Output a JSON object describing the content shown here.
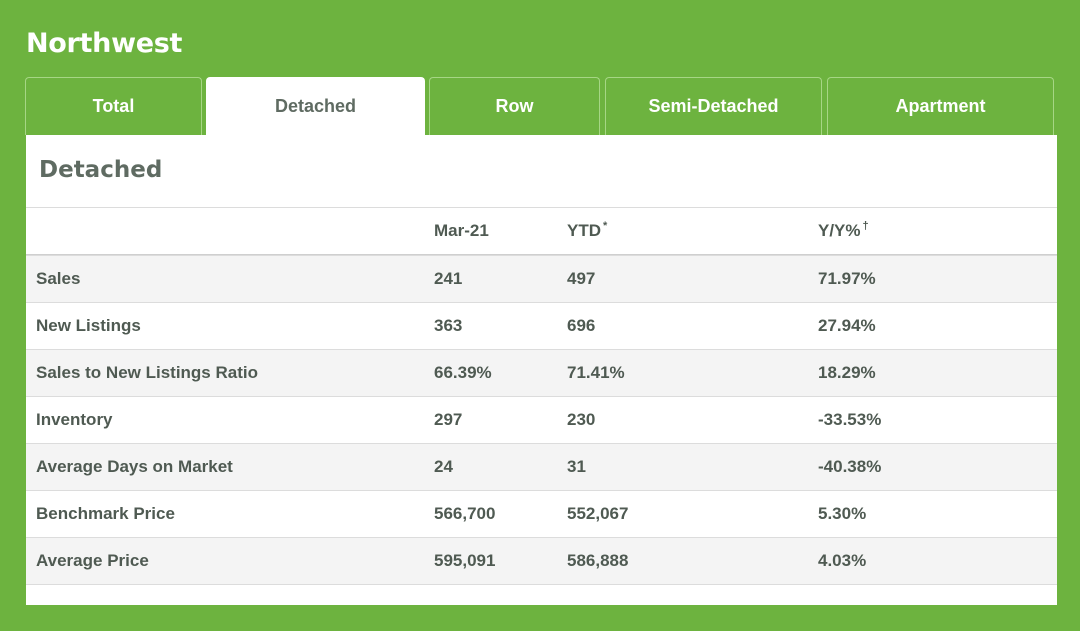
{
  "region": {
    "title": "Northwest"
  },
  "tabs": [
    {
      "label": "Total"
    },
    {
      "label": "Detached"
    },
    {
      "label": "Row"
    },
    {
      "label": "Semi-Detached"
    },
    {
      "label": "Apartment"
    }
  ],
  "active_tab": "Detached",
  "panel": {
    "title": "Detached"
  },
  "table": {
    "headers": {
      "period": "Mar-21",
      "ytd": "YTD",
      "ytd_mark": "*",
      "yoy": "Y/Y%",
      "yoy_mark": "†"
    },
    "rows": [
      {
        "label": "Sales",
        "month": "241",
        "ytd": "497",
        "yoy": "71.97%"
      },
      {
        "label": "New Listings",
        "month": "363",
        "ytd": "696",
        "yoy": "27.94%"
      },
      {
        "label": "Sales to New Listings Ratio",
        "month": "66.39%",
        "ytd": "71.41%",
        "yoy": "18.29%"
      },
      {
        "label": "Inventory",
        "month": "297",
        "ytd": "230",
        "yoy": "-33.53%"
      },
      {
        "label": "Average Days on Market",
        "month": "24",
        "ytd": "31",
        "yoy": "-40.38%"
      },
      {
        "label": "Benchmark Price",
        "month": "566,700",
        "ytd": "552,067",
        "yoy": "5.30%"
      },
      {
        "label": "Average Price",
        "month": "595,091",
        "ytd": "586,888",
        "yoy": "4.03%"
      }
    ]
  },
  "colors": {
    "background": "#6db33f",
    "panel": "#ffffff",
    "text": "#4f5a52"
  }
}
